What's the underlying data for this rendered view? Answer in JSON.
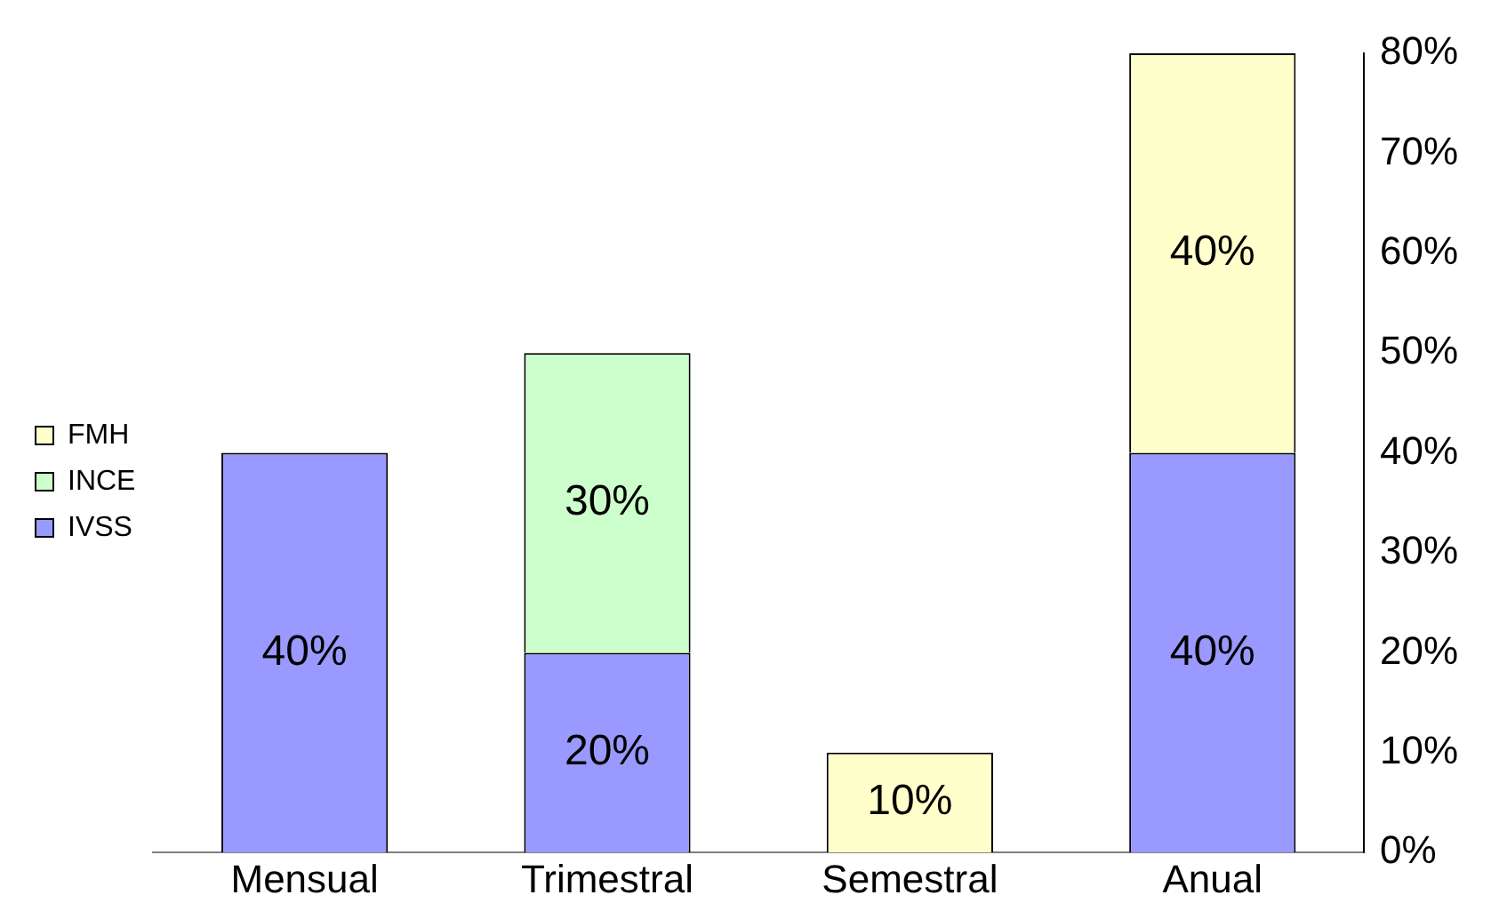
{
  "chart_data": {
    "type": "bar",
    "stacked": true,
    "categories": [
      "Mensual",
      "Trimestral",
      "Semestral",
      "Anual"
    ],
    "series": [
      {
        "name": "IVSS",
        "color": "#9999ff",
        "values": [
          40,
          20,
          null,
          40
        ],
        "value_labels": [
          "40%",
          "20%",
          null,
          "40%"
        ]
      },
      {
        "name": "INCE",
        "color": "#ccffcc",
        "values": [
          null,
          30,
          null,
          null
        ],
        "value_labels": [
          null,
          "30%",
          null,
          null
        ]
      },
      {
        "name": "FMH",
        "color": "#ffffcc",
        "values": [
          null,
          null,
          10,
          40
        ],
        "value_labels": [
          null,
          null,
          "10%",
          "40%"
        ]
      }
    ],
    "ylim": [
      0,
      80
    ],
    "yticks": [
      {
        "value": 0,
        "label": "0%"
      },
      {
        "value": 10,
        "label": "10%"
      },
      {
        "value": 20,
        "label": "20%"
      },
      {
        "value": 30,
        "label": "30%"
      },
      {
        "value": 40,
        "label": "40%"
      },
      {
        "value": 50,
        "label": "50%"
      },
      {
        "value": 60,
        "label": "60%"
      },
      {
        "value": 70,
        "label": "70%"
      },
      {
        "value": 80,
        "label": "80%"
      }
    ],
    "legend": "left"
  }
}
